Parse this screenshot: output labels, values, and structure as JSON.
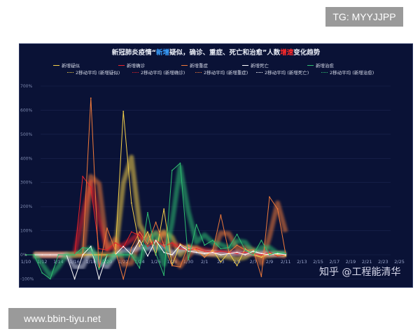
{
  "watermarks": {
    "tg": "TG: MYYJJPP",
    "site": "www.bbin-tiyu.net",
    "zhihu": "知乎 @工程能清华"
  },
  "chart_data": {
    "type": "line",
    "title_parts": [
      "新冠肺炎疫情“",
      "新增",
      "疑似，确诊、重症、死亡和治愈”人数",
      "增速",
      "变化趋势"
    ],
    "ylim": [
      -100,
      700
    ],
    "yticks": [
      "-100%",
      "0%",
      "100%",
      "200%",
      "300%",
      "400%",
      "500%",
      "600%",
      "700%"
    ],
    "ytick_values": [
      -100,
      0,
      100,
      200,
      300,
      400,
      500,
      600,
      700
    ],
    "grid": true,
    "legend_position": "top",
    "xlabels": [
      "1/10",
      "1/12",
      "1/14",
      "1/16",
      "1/18",
      "1/20",
      "1/22",
      "1/24",
      "1/26",
      "1/28",
      "1/30",
      "2/1",
      "2/3",
      "2/5",
      "2/7",
      "2/9",
      "2/11",
      "2/13",
      "2/15",
      "2/17",
      "2/19",
      "2/21",
      "2/23",
      "2/25"
    ],
    "x_dates_start": "1/10",
    "x_dates_end": "2/25",
    "series": [
      {
        "name": "新增疑似",
        "ma_name": "2移动平均 (新增疑似)",
        "color": "#f5d04a",
        "values": [
          0,
          0,
          0,
          0,
          0,
          0,
          0,
          0,
          0,
          0,
          0,
          0,
          595,
          215,
          35,
          95,
          0,
          190,
          -45,
          45,
          25,
          20,
          -10,
          20,
          -30,
          10,
          -45,
          25,
          0,
          -10,
          5,
          0,
          -5
        ]
      },
      {
        "name": "新增确诊",
        "ma_name": "2移动平均 (新增确诊)",
        "color": "#e8222a",
        "values": [
          0,
          0,
          0,
          0,
          0,
          0,
          0,
          325,
          280,
          25,
          20,
          50,
          30,
          95,
          80,
          35,
          60,
          35,
          50,
          25,
          20,
          25,
          15,
          10,
          15,
          10,
          5,
          10,
          5,
          0,
          10,
          -5,
          0
        ]
      },
      {
        "name": "新增重症",
        "ma_name": "2移动平均 (新增重症)",
        "color": "#f07a3a",
        "values": [
          0,
          0,
          0,
          0,
          0,
          0,
          0,
          0,
          650,
          -60,
          110,
          20,
          -100,
          30,
          95,
          45,
          135,
          40,
          -45,
          -50,
          40,
          20,
          -10,
          15,
          165,
          10,
          40,
          20,
          20,
          -90,
          240,
          190,
          0
        ]
      },
      {
        "name": "新增死亡",
        "ma_name": "2移动平均 (新增死亡)",
        "color": "#ffffff",
        "values": [
          0,
          0,
          0,
          0,
          0,
          0,
          -100,
          0,
          35,
          -100,
          0,
          0,
          35,
          0,
          60,
          -5,
          60,
          10,
          0,
          40,
          15,
          10,
          5,
          10,
          0,
          5,
          10,
          0,
          15,
          5,
          0,
          5,
          0
        ]
      },
      {
        "name": "新增治愈",
        "ma_name": "2移动平均 (新增治愈)",
        "color": "#2fbf71",
        "values": [
          0,
          0,
          -75,
          -100,
          0,
          0,
          0,
          30,
          25,
          -60,
          0,
          0,
          0,
          0,
          -55,
          175,
          5,
          -85,
          350,
          380,
          -20,
          125,
          40,
          60,
          25,
          30,
          85,
          20,
          0,
          60,
          0,
          10,
          5
        ]
      }
    ]
  }
}
